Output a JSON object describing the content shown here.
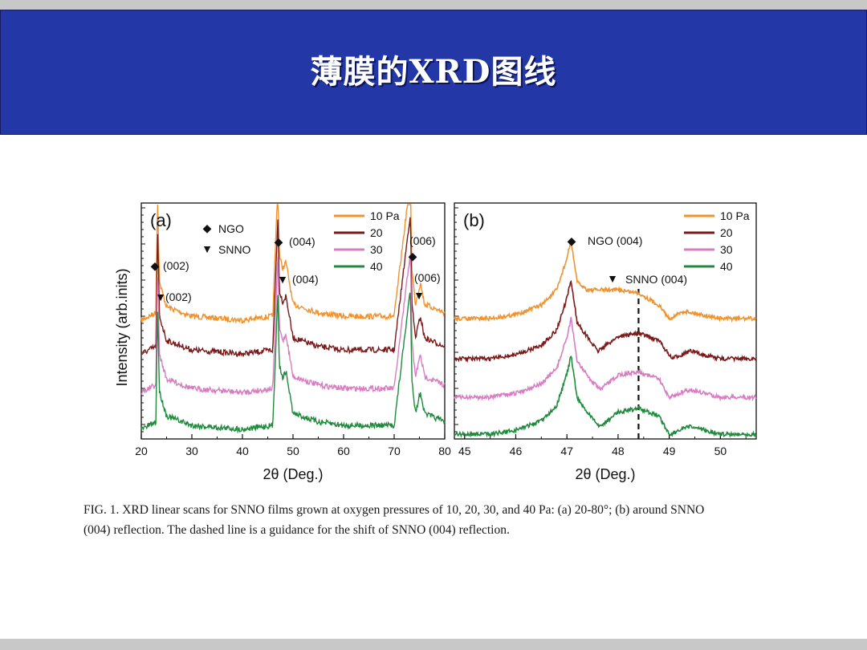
{
  "slide": {
    "title": "薄膜的XRD图线",
    "caption_line1": "FIG. 1.  XRD linear scans for SNNO films grown at oxygen pressures of 10, 20, 30, and 40 Pa: (a) 20-80°; (b) around SNNO",
    "caption_line2": "(004) reflection. The dashed line is a guidance for the shift of SNNO (004) reflection."
  },
  "colors": {
    "banner": "#2338a6",
    "series": [
      "#f0922e",
      "#7a1a1a",
      "#d77dc2",
      "#1f8a3c"
    ]
  },
  "chart_data": [
    {
      "type": "line",
      "panel_label": "(a)",
      "xlabel": "2θ (Deg.)",
      "ylabel": "Intensity (arb.inits)",
      "xlim": [
        20,
        80
      ],
      "x_ticks": [
        20,
        30,
        40,
        50,
        60,
        70,
        80
      ],
      "y_scale": "log",
      "y_tick_labels": false,
      "legend_position": "top-right",
      "series": [
        {
          "name": "10 Pa",
          "color": "#f0922e",
          "x": [
            20,
            22.9,
            23.2,
            23.6,
            25,
            30,
            40,
            46,
            47.0,
            47.3,
            48.0,
            48.6,
            50,
            55,
            60,
            70,
            73.2,
            73.5,
            74.2,
            75.2,
            76,
            80
          ],
          "y": [
            7,
            9,
            500,
            25,
            11,
            8,
            7,
            8,
            700,
            60,
            40,
            50,
            12,
            9,
            8,
            8,
            800,
            40,
            12,
            25,
            12,
            9
          ]
        },
        {
          "name": "20",
          "color": "#7a1a1a",
          "x": [
            20,
            22.9,
            23.2,
            23.6,
            25,
            30,
            40,
            46,
            47.0,
            47.3,
            48.0,
            48.6,
            50,
            55,
            60,
            70,
            73.2,
            73.5,
            74.2,
            75.2,
            76,
            80
          ],
          "y": [
            7,
            9,
            500,
            25,
            11,
            8,
            7,
            8,
            700,
            60,
            40,
            50,
            12,
            9,
            8,
            8,
            800,
            40,
            12,
            25,
            12,
            9
          ]
        },
        {
          "name": "30",
          "color": "#d77dc2",
          "x": [
            20,
            22.9,
            23.2,
            23.6,
            25,
            30,
            40,
            46,
            47.0,
            47.3,
            48.0,
            48.6,
            50,
            55,
            60,
            70,
            73.2,
            73.5,
            74.2,
            75.2,
            76,
            80
          ],
          "y": [
            7,
            9,
            500,
            25,
            11,
            8,
            7,
            8,
            700,
            60,
            40,
            50,
            12,
            9,
            8,
            8,
            800,
            40,
            12,
            25,
            12,
            9
          ]
        },
        {
          "name": "40",
          "color": "#1f8a3c",
          "x": [
            20,
            22.9,
            23.2,
            23.6,
            25,
            30,
            40,
            46,
            47.0,
            47.3,
            48.0,
            48.6,
            50,
            55,
            60,
            70,
            73.2,
            73.5,
            74.2,
            75.2,
            76,
            80
          ],
          "y": [
            7,
            9,
            500,
            25,
            11,
            8,
            7,
            8,
            700,
            60,
            40,
            50,
            12,
            9,
            8,
            8,
            800,
            40,
            12,
            25,
            12,
            9
          ]
        }
      ],
      "marker_legend": [
        {
          "symbol": "◆",
          "label": "NGO"
        },
        {
          "symbol": "▼",
          "label": "SNNO"
        }
      ],
      "annotations": [
        {
          "symbol": "◆",
          "text": "(002)",
          "x": 23.0
        },
        {
          "symbol": "▼",
          "text": "(002)",
          "x": 23.7
        },
        {
          "symbol": "◆",
          "text": "(004)",
          "x": 47.0
        },
        {
          "symbol": "▼",
          "text": "(004)",
          "x": 47.8
        },
        {
          "symbol": "◆",
          "text": "(006)",
          "x": 73.0
        },
        {
          "symbol": "▼",
          "text": "(006)",
          "x": 75.1
        }
      ]
    },
    {
      "type": "line",
      "panel_label": "(b)",
      "xlabel": "2θ (Deg.)",
      "xlim": [
        44.8,
        50.7
      ],
      "x_ticks": [
        45,
        46,
        47,
        48,
        49,
        50
      ],
      "y_scale": "log",
      "y_tick_labels": false,
      "legend_position": "top-right",
      "series": [
        {
          "name": "10 Pa",
          "color": "#f0922e",
          "x": [
            44.8,
            45.5,
            46.0,
            46.5,
            46.8,
            47.0,
            47.08,
            47.2,
            47.4,
            48.0,
            48.4,
            48.8,
            49.0,
            49.3,
            50.0,
            50.7
          ],
          "y": [
            3,
            3,
            3.5,
            5,
            9,
            30,
            60,
            12,
            9,
            9,
            8,
            5,
            3,
            4,
            3,
            3
          ]
        },
        {
          "name": "20",
          "color": "#7a1a1a",
          "x": [
            44.8,
            45.5,
            46.0,
            46.5,
            46.8,
            47.0,
            47.08,
            47.2,
            47.45,
            47.6,
            48.0,
            48.4,
            48.8,
            49.05,
            49.4,
            50.0,
            50.7
          ],
          "y": [
            3,
            3,
            3.5,
            5,
            9,
            30,
            60,
            12,
            6,
            4,
            7,
            8,
            6,
            3,
            4,
            3,
            3
          ]
        },
        {
          "name": "30",
          "color": "#d77dc2",
          "x": [
            44.8,
            45.5,
            46.0,
            46.5,
            46.8,
            47.0,
            47.08,
            47.2,
            47.45,
            47.65,
            48.0,
            48.4,
            48.8,
            49.0,
            49.4,
            50.0,
            50.7
          ],
          "y": [
            3,
            3,
            3.5,
            5,
            9,
            30,
            60,
            12,
            6,
            4,
            7,
            8,
            6,
            3,
            4,
            3,
            3
          ]
        },
        {
          "name": "40",
          "color": "#1f8a3c",
          "x": [
            44.8,
            45.5,
            46.0,
            46.5,
            46.8,
            47.0,
            47.08,
            47.2,
            47.45,
            47.65,
            48.0,
            48.4,
            48.8,
            49.0,
            49.4,
            50.0,
            50.7
          ],
          "y": [
            3,
            3,
            3.5,
            5,
            9,
            30,
            60,
            12,
            6,
            4,
            7,
            8,
            6,
            3,
            4,
            3,
            3
          ]
        }
      ],
      "annotations": [
        {
          "symbol": "◆",
          "text": "NGO (004)",
          "x": 47.0
        },
        {
          "symbol": "▼",
          "text": "SNNO (004)",
          "x": 47.8
        }
      ],
      "dashed_line_x": 48.4
    }
  ]
}
